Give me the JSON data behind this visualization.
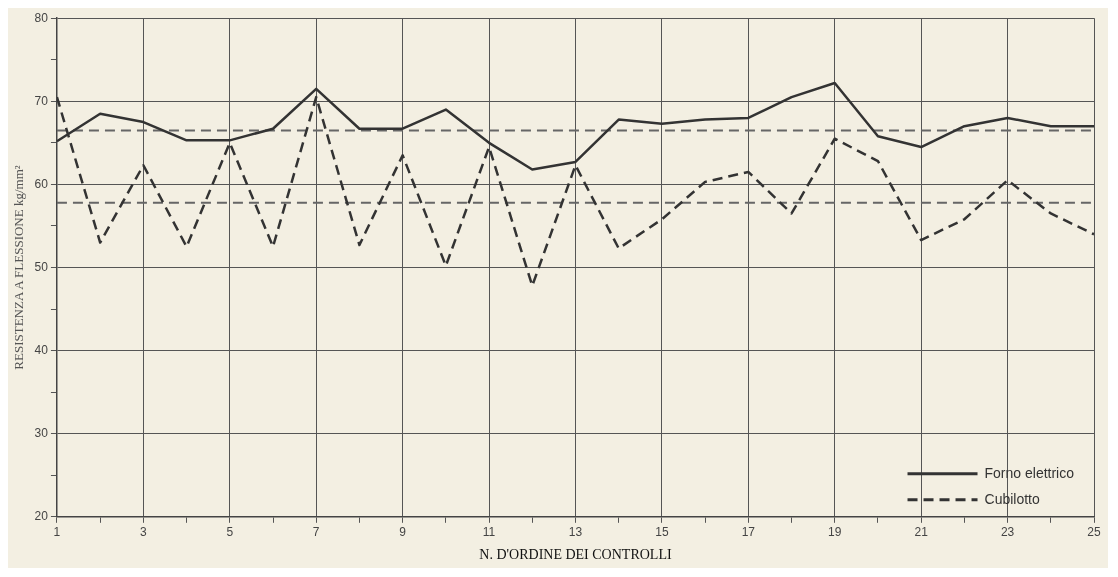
{
  "chart_data": {
    "type": "line",
    "xlabel": "N. D'ORDINE DEI CONTROLLI",
    "ylabel": "RESISTENZA A FLESSIONE kg/mm²",
    "x": [
      1,
      2,
      3,
      4,
      5,
      6,
      7,
      8,
      9,
      10,
      11,
      12,
      13,
      14,
      15,
      16,
      17,
      18,
      19,
      20,
      21,
      22,
      23,
      24,
      25
    ],
    "series": [
      {
        "name": "Forno elettrico",
        "color": "#333333",
        "line_style": "solid",
        "values": [
          65.2,
          68.5,
          67.5,
          65.3,
          65.3,
          66.7,
          71.5,
          66.7,
          66.7,
          69,
          65,
          61.8,
          62.7,
          67.8,
          67.3,
          67.8,
          68,
          70.5,
          72.2,
          65.8,
          64.5,
          67,
          68,
          67,
          67
        ]
      },
      {
        "name": "Cubilotto",
        "color": "#333333",
        "line_style": "dashed",
        "values": [
          70.5,
          53,
          62.3,
          52.5,
          65,
          52.5,
          70.5,
          52.7,
          63.5,
          50.2,
          64.5,
          47.8,
          62.3,
          52.3,
          55.8,
          60.3,
          61.5,
          56.5,
          65.5,
          62.8,
          53.3,
          55.8,
          60.5,
          56.5,
          54
        ]
      }
    ],
    "ref_lines": [
      {
        "axis": "y",
        "value": 66.5,
        "color": "#666666",
        "line_style": "dashed"
      },
      {
        "axis": "y",
        "value": 57.8,
        "color": "#666666",
        "line_style": "dashed"
      }
    ],
    "xlim": [
      1,
      25
    ],
    "ylim": [
      20,
      80
    ],
    "xticks": [
      1,
      {
        "value": 2,
        "label": null
      },
      3,
      {
        "value": 4,
        "label": null
      },
      5,
      {
        "value": 6,
        "label": null
      },
      7,
      {
        "value": 8,
        "label": null
      },
      9,
      {
        "value": 10,
        "label": null
      },
      11,
      {
        "value": 12,
        "label": null
      },
      13,
      {
        "value": 14,
        "label": null
      },
      15,
      {
        "value": 16,
        "label": null
      },
      17,
      {
        "value": 18,
        "label": null
      },
      19,
      {
        "value": 20,
        "label": null
      },
      21,
      {
        "value": 22,
        "label": null
      },
      23,
      {
        "value": 24,
        "label": null
      },
      25
    ],
    "yticks": [
      20,
      {
        "value": 25,
        "label": null
      },
      30,
      {
        "value": 35,
        "label": null
      },
      40,
      {
        "value": 45,
        "label": null
      },
      50,
      {
        "value": 55,
        "label": null
      },
      60,
      {
        "value": 65,
        "label": null
      },
      70,
      {
        "value": 75,
        "label": null
      },
      80
    ],
    "grid": true,
    "legend": "bottom right",
    "marker": "none"
  }
}
